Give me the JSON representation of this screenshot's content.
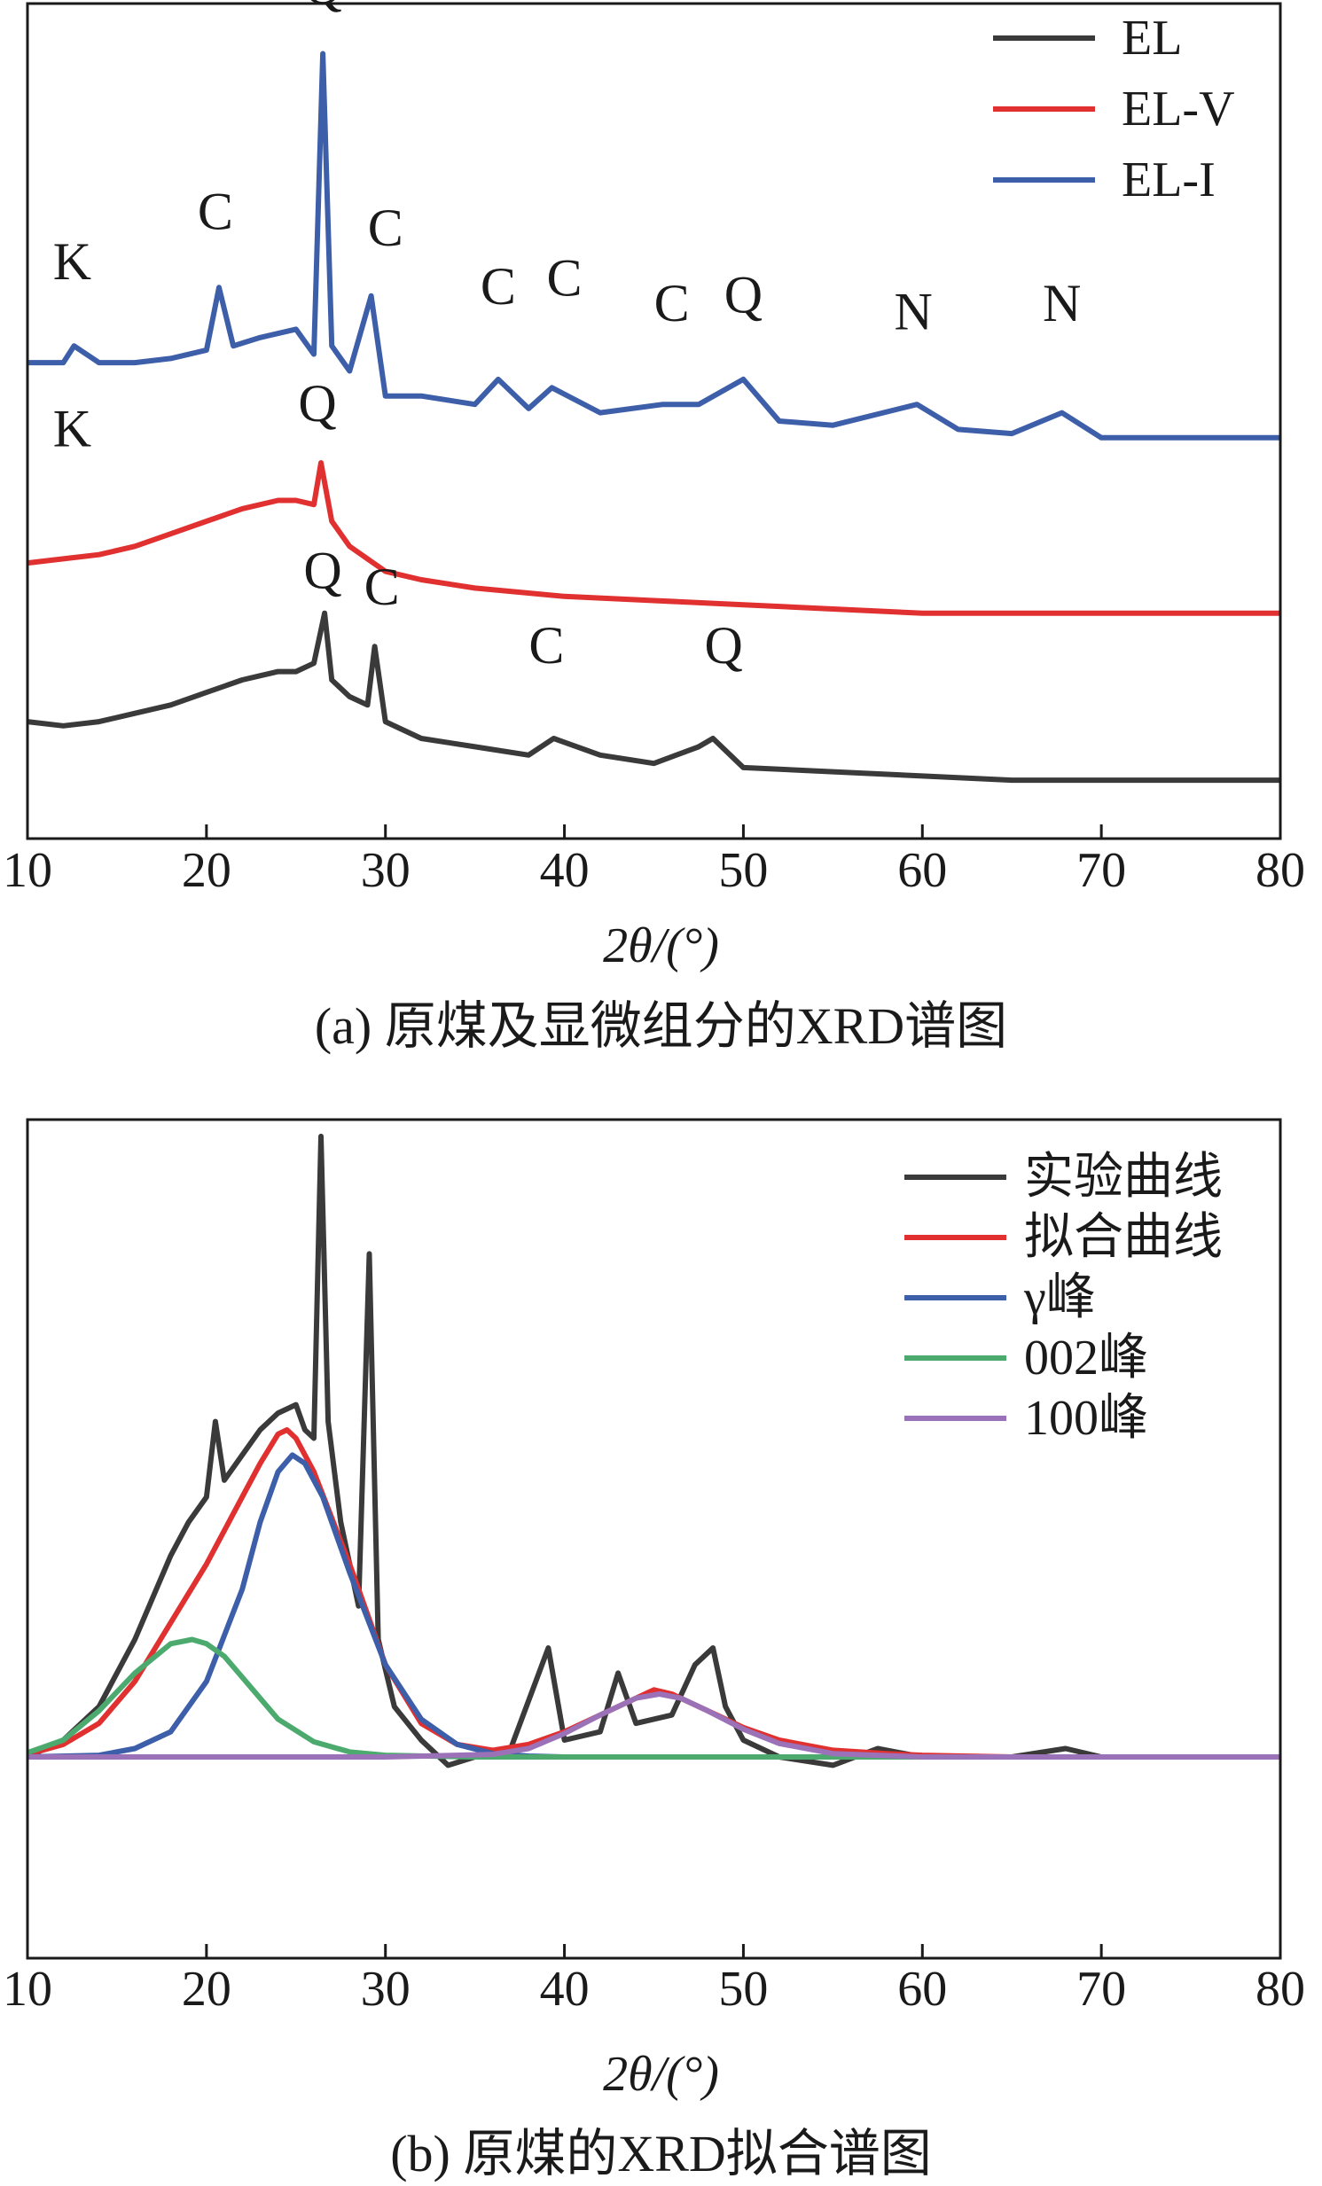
{
  "chart_data": [
    {
      "type": "line",
      "caption": "(a) 原煤及显微组分的XRD谱图",
      "xlabel": "2θ/(°)",
      "xlim": [
        10,
        80
      ],
      "xticks": [
        10,
        20,
        30,
        40,
        50,
        60,
        70,
        80
      ],
      "ylim": [
        0,
        100
      ],
      "y_ticks_shown": false,
      "grid": false,
      "legend_position": "top-right",
      "series": [
        {
          "name": "EL",
          "color": "#3a3a3a",
          "x": [
            10,
            12,
            14,
            16,
            18,
            20,
            22,
            24,
            25,
            26,
            26.6,
            27,
            28,
            29.0,
            29.4,
            30,
            32,
            35,
            38,
            39.4,
            42,
            45,
            47.5,
            48.3,
            50,
            55,
            60,
            65,
            70,
            75,
            80
          ],
          "y": [
            14,
            13.5,
            14,
            15,
            16,
            17.5,
            19,
            20,
            20,
            21,
            27,
            19,
            17,
            16,
            23,
            14,
            12,
            11,
            10,
            12,
            10,
            9,
            11,
            12,
            8.5,
            8,
            7.5,
            7,
            7,
            7,
            7
          ]
        },
        {
          "name": "EL-V",
          "color": "#e03030",
          "x": [
            10,
            12,
            14,
            16,
            18,
            20,
            22,
            24,
            25,
            26,
            26.4,
            27,
            28,
            30,
            32,
            35,
            40,
            45,
            50,
            55,
            60,
            65,
            70,
            75,
            80
          ],
          "y": [
            33,
            33.5,
            34,
            35,
            36.5,
            38,
            39.5,
            40.5,
            40.5,
            40,
            45,
            38,
            35,
            32,
            31,
            30,
            29,
            28.5,
            28,
            27.5,
            27,
            27,
            27,
            27,
            27
          ]
        },
        {
          "name": "EL-I",
          "color": "#3d5ea8",
          "x": [
            10,
            12,
            12.6,
            14,
            16,
            18,
            20,
            20.7,
            21.5,
            23,
            25,
            26.0,
            26.5,
            27,
            28,
            29.2,
            30,
            32,
            35,
            36.3,
            38,
            39.3,
            42,
            45.5,
            47.5,
            50.0,
            52,
            55,
            59.7,
            62,
            65,
            67.8,
            70,
            75,
            80
          ],
          "y": [
            57,
            57,
            59,
            57,
            57,
            57.5,
            58.5,
            66,
            59,
            60,
            61,
            58,
            94,
            59,
            56,
            65,
            53,
            53,
            52,
            55,
            51.5,
            54,
            51,
            52,
            52,
            55,
            50,
            49.5,
            52,
            49,
            48.5,
            51,
            48,
            48,
            48
          ]
        }
      ],
      "annotations": [
        {
          "text": "Q",
          "x": 26.5,
          "y": 100
        },
        {
          "text": "K",
          "x": 12.5,
          "y": 67
        },
        {
          "text": "C",
          "x": 20.5,
          "y": 73
        },
        {
          "text": "C",
          "x": 30.0,
          "y": 71
        },
        {
          "text": "C",
          "x": 36.3,
          "y": 64
        },
        {
          "text": "C",
          "x": 40.0,
          "y": 65
        },
        {
          "text": "C",
          "x": 46.0,
          "y": 62
        },
        {
          "text": "Q",
          "x": 50.0,
          "y": 63
        },
        {
          "text": "N",
          "x": 59.5,
          "y": 61
        },
        {
          "text": "N",
          "x": 67.8,
          "y": 62
        },
        {
          "text": "K",
          "x": 12.5,
          "y": 47
        },
        {
          "text": "Q",
          "x": 26.2,
          "y": 50
        },
        {
          "text": "Q",
          "x": 26.5,
          "y": 30
        },
        {
          "text": "C",
          "x": 29.8,
          "y": 28
        },
        {
          "text": "C",
          "x": 39.0,
          "y": 21
        },
        {
          "text": "Q",
          "x": 48.9,
          "y": 21
        }
      ]
    },
    {
      "type": "line",
      "caption": "(b) 原煤的XRD拟合谱图",
      "xlabel": "2θ/(°)",
      "xlim": [
        10,
        80
      ],
      "xticks": [
        10,
        20,
        30,
        40,
        50,
        60,
        70,
        80
      ],
      "ylim": [
        0,
        100
      ],
      "y_ticks_shown": false,
      "grid": false,
      "legend_position": "top-right",
      "series": [
        {
          "name": "实验曲线",
          "color": "#3a3a3a",
          "x": [
            10,
            12,
            14,
            16,
            18,
            19,
            20,
            20.5,
            21,
            22,
            23,
            24,
            25,
            25.5,
            26,
            26.4,
            26.8,
            27.5,
            28.5,
            29.1,
            29.6,
            30.5,
            32,
            33.5,
            35,
            37,
            39.1,
            40,
            42,
            43.0,
            44,
            46,
            47.3,
            48.3,
            49,
            50,
            52,
            55,
            57.5,
            60,
            62,
            65,
            68,
            70,
            75,
            80
          ],
          "y": [
            24,
            26,
            30,
            38,
            48,
            52,
            55,
            64,
            57,
            60,
            63,
            65,
            66,
            63,
            62,
            98,
            64,
            52,
            42,
            84,
            38,
            30,
            26,
            23,
            24,
            25,
            37,
            26,
            27,
            34,
            28,
            29,
            35,
            37,
            30,
            26,
            24,
            23,
            25,
            24,
            24,
            24,
            25,
            24,
            24,
            24
          ]
        },
        {
          "name": "拟合曲线",
          "color": "#e03030",
          "x": [
            10,
            12,
            14,
            16,
            18,
            20,
            22,
            23,
            24,
            24.5,
            25,
            26,
            28,
            30,
            32,
            34,
            36,
            38,
            40,
            42,
            44,
            45,
            46,
            48,
            50,
            52,
            55,
            58,
            60,
            65,
            70,
            80
          ],
          "y": [
            24.3,
            25.5,
            28,
            33,
            40,
            47,
            55,
            59,
            62.5,
            63,
            62,
            58,
            47,
            35,
            28,
            25.5,
            24.8,
            25.5,
            27,
            29,
            31,
            32,
            31.5,
            29.5,
            27.5,
            26,
            24.8,
            24.4,
            24.2,
            24,
            24,
            24
          ]
        },
        {
          "name": "γ峰",
          "color": "#3d5ea8",
          "x": [
            10,
            14,
            16,
            18,
            20,
            22,
            23,
            24,
            24.8,
            25.5,
            26.5,
            28,
            30,
            32,
            34,
            36,
            38,
            40,
            45,
            50,
            60,
            70,
            80
          ],
          "y": [
            24,
            24.2,
            25,
            27,
            33,
            44,
            52,
            58,
            60,
            59,
            55,
            46,
            35,
            28.5,
            25.5,
            24.4,
            24.1,
            24,
            24,
            24,
            24,
            24,
            24
          ]
        },
        {
          "name": "002峰",
          "color": "#4caa6e",
          "x": [
            10,
            12,
            14,
            16,
            18,
            19.2,
            20,
            21,
            22,
            24,
            26,
            28,
            30,
            35,
            40,
            50,
            60,
            70,
            80
          ],
          "y": [
            24.5,
            26,
            29.5,
            34,
            37.5,
            38,
            37.5,
            36,
            33.5,
            28.5,
            25.8,
            24.6,
            24.2,
            24,
            24,
            24,
            24,
            24,
            24
          ]
        },
        {
          "name": "100峰",
          "color": "#9b72b8",
          "x": [
            10,
            20,
            30,
            36,
            38,
            40,
            42,
            44,
            45.3,
            46.5,
            48,
            50,
            52,
            55,
            60,
            70,
            80
          ],
          "y": [
            24,
            24,
            24,
            24.3,
            25,
            26.8,
            29,
            31,
            31.5,
            31,
            29.5,
            27.3,
            25.6,
            24.4,
            24,
            24,
            24
          ]
        }
      ]
    }
  ]
}
